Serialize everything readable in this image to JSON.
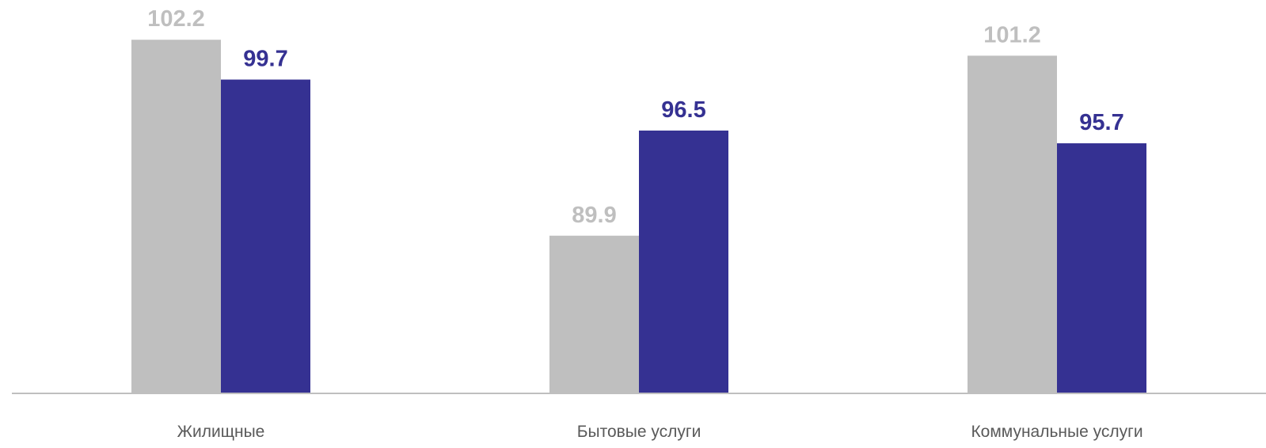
{
  "chart_data": {
    "type": "bar",
    "categories": [
      "Жилищные",
      "Бытовые услуги",
      "Коммунальные услуги"
    ],
    "series": [
      {
        "values": [
          102.2,
          89.9,
          101.2
        ],
        "color": "#bfbfbf",
        "label_color": "#bfbfbf"
      },
      {
        "values": [
          99.7,
          96.5,
          95.7
        ],
        "color": "#353192",
        "label_color": "#353192"
      }
    ],
    "value_labels": [
      [
        "102.2",
        "89.9",
        "101.2"
      ],
      [
        "99.7",
        "96.5",
        "95.7"
      ]
    ],
    "ylim": [
      80,
      104
    ],
    "grid": false,
    "legend": "none",
    "axis_color": "#bfbfbf"
  }
}
